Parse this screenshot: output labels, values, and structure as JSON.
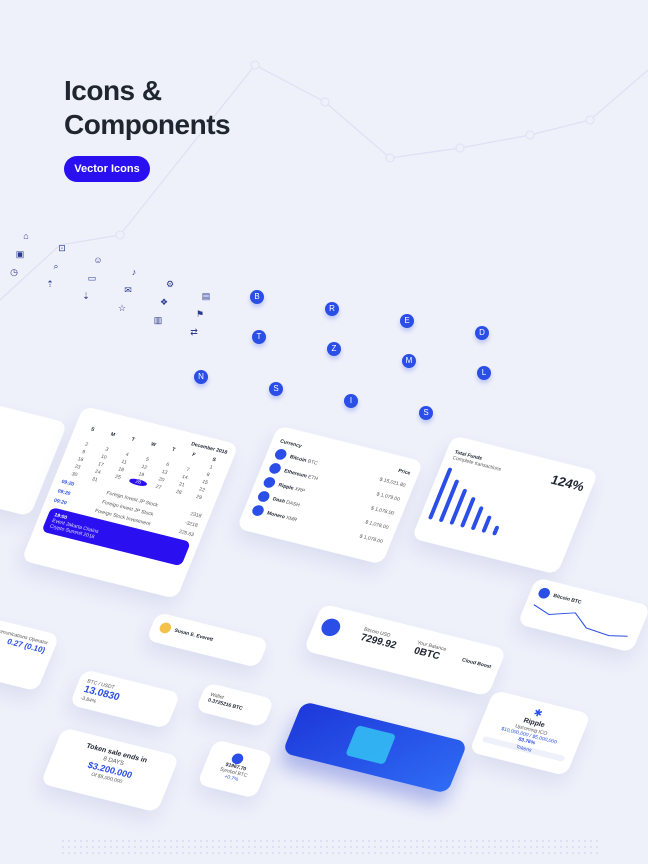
{
  "header": {
    "title_line1": "Icons &",
    "title_line2": "Components",
    "badge": "Vector Icons"
  },
  "colors": {
    "background": "#eef0fa",
    "accent": "#2a0ff0",
    "blue": "#2a4ee6",
    "text": "#1f2630"
  },
  "icons": [
    "home",
    "lock",
    "user",
    "bell",
    "settings",
    "chart",
    "wallet",
    "search",
    "card",
    "mail",
    "gift",
    "flag",
    "clock",
    "upload",
    "download",
    "star",
    "trash",
    "exchange",
    "bitcoin",
    "ripple",
    "ethereum",
    "dash",
    "tether",
    "zcash",
    "monero",
    "litecoin",
    "neo",
    "steem",
    "iota",
    "stellar"
  ],
  "calendar": {
    "month": "December 2018",
    "weekdays": [
      "S",
      "M",
      "T",
      "W",
      "T",
      "F",
      "S"
    ],
    "days": [
      "",
      "",
      "",
      "",
      "",
      "",
      "1",
      "2",
      "3",
      "4",
      "5",
      "6",
      "7",
      "8",
      "9",
      "10",
      "11",
      "12",
      "13",
      "14",
      "15",
      "16",
      "17",
      "18",
      "19",
      "20",
      "21",
      "22",
      "23",
      "24",
      "25",
      "26",
      "27",
      "28",
      "29",
      "30",
      "31"
    ],
    "selected_day": "26",
    "events": [
      {
        "time": "09:20",
        "name": "Foreign Invest JP Stock",
        "value": "2318"
      },
      {
        "time": "09:20",
        "name": "Foreign Invest JP Stock",
        "value": "-3218"
      },
      {
        "time": "09:20",
        "name": "Foreign Stock Investment",
        "value": "225.63"
      }
    ],
    "highlight": {
      "time": "19:00",
      "title": "Event Jakarta Chains",
      "sub": "Crypto Summit 2018"
    }
  },
  "currency": {
    "col1": "Currency",
    "col2": "Price",
    "rows": [
      {
        "name": "Bitcoin",
        "sym": "BTC",
        "price": "$ 15,021.80"
      },
      {
        "name": "Ethereum",
        "sym": "ETH",
        "price": "$ 1,079.00"
      },
      {
        "name": "Ripple",
        "sym": "XRP",
        "price": "$ 1,078.00"
      },
      {
        "name": "Dash",
        "sym": "DASH",
        "price": "$ 1,078.00"
      },
      {
        "name": "Monero",
        "sym": "XMR",
        "price": "$ 1,078.00"
      }
    ]
  },
  "funds": {
    "title": "Total Funds",
    "subtitle": "Complete transactions",
    "percent": "124%",
    "bar_values": [
      100,
      82,
      70,
      58,
      45,
      32,
      18
    ]
  },
  "btc_chart": {
    "title": "Bitcoin BTC"
  },
  "profile": {
    "name": "Susan E. Everett"
  },
  "rate": {
    "label": "BTC / USDT",
    "value": "13.0830",
    "change": "-3.84%"
  },
  "balance": {
    "label": "Bitcoin USD",
    "value": "7299.92",
    "bal_label": "Your Balance",
    "bal_value": "0BTC",
    "boost_label": "Cloud Boost"
  },
  "token": {
    "title": "Token sale ends in",
    "days": "8 DAYS",
    "raised": "$3.200.000",
    "goal": "Of $5,000,000"
  },
  "wallet": {
    "label": "Wallet",
    "value": "0.3725216 BTC"
  },
  "coin_small": {
    "value": "$1967.70",
    "label": "Symbol BTC",
    "change": "+0.7%"
  },
  "ripple": {
    "title": "Ripple",
    "sub": "Upcoming ICO",
    "goal": "$10,000,000 / $5,000,000",
    "percent": "83.76%",
    "button": "Tokens"
  },
  "exchange": {
    "value": "0.27 (0.10)",
    "label": "Telecommunications Operator"
  }
}
